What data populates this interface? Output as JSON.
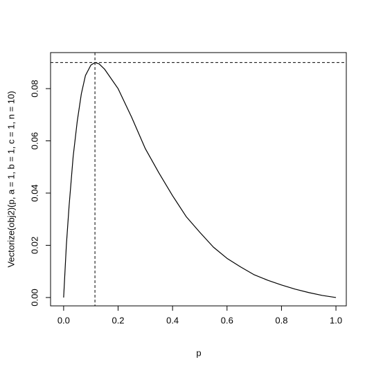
{
  "chart_data": {
    "type": "line",
    "x_label": "p",
    "y_label": "Vectorize(obj2)(p, a = 1, b = 1, c = 1, n = 10)",
    "x": [
      0,
      0.01,
      0.02,
      0.035,
      0.05,
      0.065,
      0.08,
      0.1,
      0.115,
      0.13,
      0.15,
      0.2,
      0.25,
      0.3,
      0.35,
      0.4,
      0.45,
      0.5,
      0.55,
      0.6,
      0.65,
      0.7,
      0.75,
      0.8,
      0.85,
      0.9,
      0.95,
      1
    ],
    "series": [
      {
        "color": "#000000",
        "values": [
          0,
          0.02,
          0.035,
          0.054,
          0.0675,
          0.078,
          0.085,
          0.089,
          0.09,
          0.0895,
          0.0875,
          0.08,
          0.069,
          0.057,
          0.0477,
          0.039,
          0.031,
          0.025,
          0.0193,
          0.015,
          0.0117,
          0.0087,
          0.0066,
          0.0048,
          0.0032,
          0.0019,
          0.0008,
          0
        ]
      }
    ],
    "vline": 0.115,
    "hline": 0.09,
    "xlim": [
      -0.048,
      1.038
    ],
    "ylim": [
      -0.0032,
      0.0938
    ],
    "xticks": [
      {
        "value": 0,
        "label": "0.0"
      },
      0.2,
      0.4,
      0.6,
      0.8,
      {
        "value": 1,
        "label": "1.0"
      }
    ],
    "yticks": [
      {
        "value": 0,
        "label": "0.00"
      },
      0.02,
      0.04,
      0.06,
      0.08
    ]
  }
}
